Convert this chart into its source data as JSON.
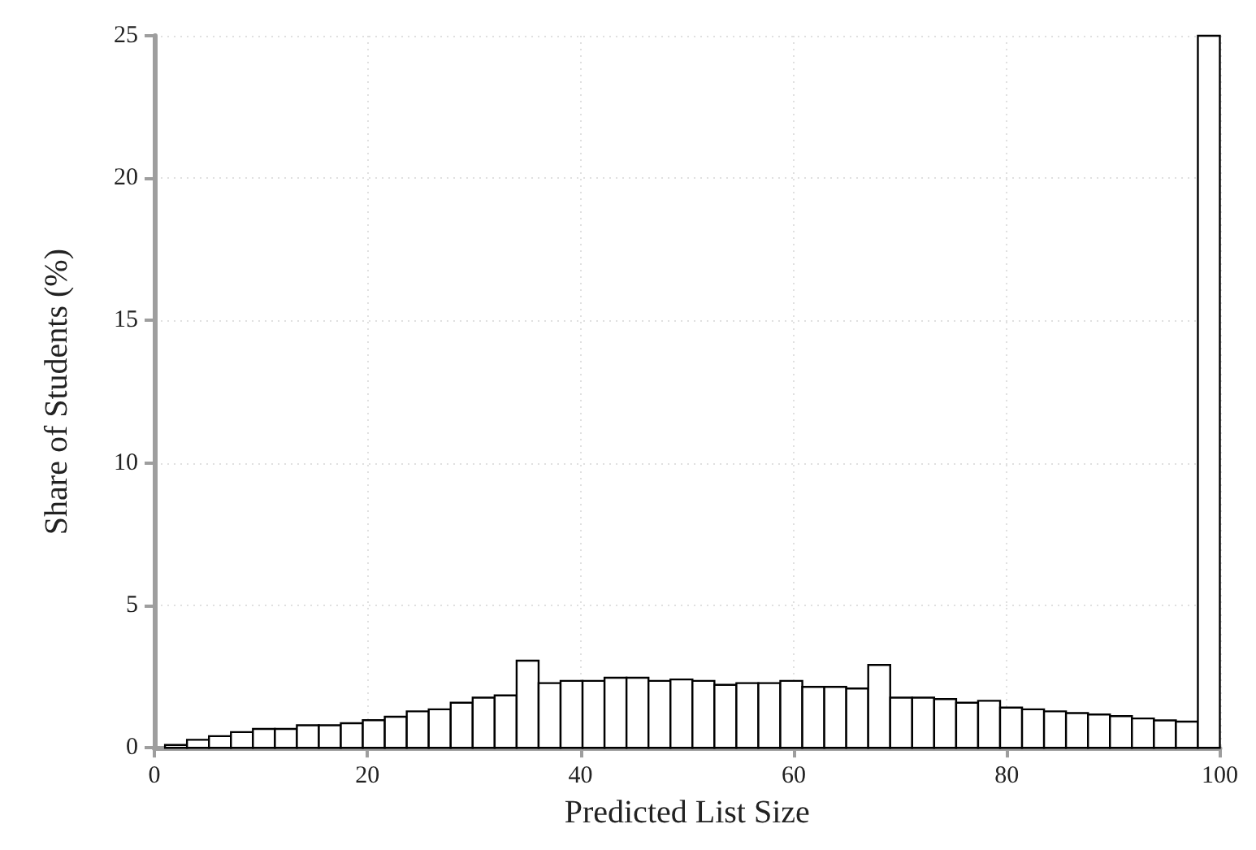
{
  "chart_data": {
    "type": "histogram",
    "xlabel": "Predicted List Size",
    "ylabel": "Share of Students (%)",
    "bins": [
      1,
      3.0625,
      5.125,
      7.1875,
      9.25,
      11.3125,
      13.375,
      15.4375,
      17.5,
      19.5625,
      21.625,
      23.6875,
      25.75,
      27.8125,
      29.875,
      31.9375,
      34,
      36.0625,
      38.125,
      40.1875,
      42.25,
      44.3125,
      46.375,
      48.4375,
      50.5,
      52.5625,
      54.625,
      56.6875,
      58.75,
      60.8125,
      62.875,
      64.9375,
      67,
      69.0625,
      71.125,
      73.1875,
      75.25,
      77.3125,
      79.375,
      81.4375,
      83.5,
      85.5625,
      87.625,
      89.6875,
      91.75,
      93.8125,
      95.875,
      97.9375,
      100
    ],
    "values": [
      0.1,
      0.28,
      0.41,
      0.55,
      0.66,
      0.66,
      0.79,
      0.79,
      0.86,
      0.97,
      1.09,
      1.28,
      1.35,
      1.58,
      1.76,
      1.84,
      3.06,
      2.27,
      2.35,
      2.35,
      2.46,
      2.46,
      2.35,
      2.4,
      2.35,
      2.21,
      2.27,
      2.27,
      2.35,
      2.14,
      2.14,
      2.08,
      2.91,
      1.76,
      1.76,
      1.71,
      1.58,
      1.65,
      1.41,
      1.35,
      1.28,
      1.22,
      1.17,
      1.11,
      1.03,
      0.96,
      0.92,
      25.0
    ],
    "color": "#ffffff",
    "xlim": [
      0,
      100
    ],
    "xticks": [
      0,
      20,
      40,
      60,
      80,
      100
    ],
    "ylim": [
      0,
      25
    ],
    "yticks": [
      0,
      5,
      10,
      15,
      20,
      25
    ],
    "grid": true
  }
}
